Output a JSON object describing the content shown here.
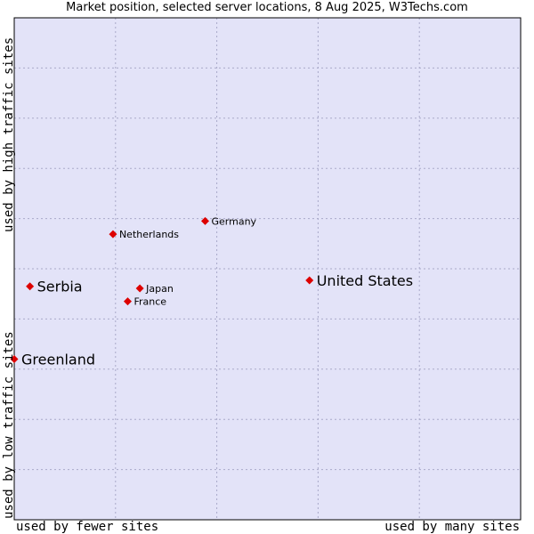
{
  "title": "Market position, selected server locations, 8 Aug 2025, W3Techs.com",
  "chart_data": {
    "type": "scatter",
    "title": "Market position, selected server locations, 8 Aug 2025, W3Techs.com",
    "x_axis": {
      "low_label": "used by fewer sites",
      "high_label": "used by many sites",
      "range": [
        0,
        100
      ]
    },
    "y_axis": {
      "low_label": "used by low traffic sites",
      "high_label": "used by high traffic sites",
      "range": [
        0,
        100
      ]
    },
    "grid": true,
    "points": [
      {
        "label": "United States",
        "x": 58.3,
        "y": 47.7,
        "emphasis": true
      },
      {
        "label": "Serbia",
        "x": 3.1,
        "y": 46.5,
        "emphasis": true
      },
      {
        "label": "Greenland",
        "x": 0.0,
        "y": 32.0,
        "emphasis": true
      },
      {
        "label": "Germany",
        "x": 37.7,
        "y": 59.5,
        "emphasis": false
      },
      {
        "label": "Netherlands",
        "x": 19.5,
        "y": 56.9,
        "emphasis": false
      },
      {
        "label": "Japan",
        "x": 24.8,
        "y": 46.1,
        "emphasis": false
      },
      {
        "label": "France",
        "x": 22.4,
        "y": 43.5,
        "emphasis": false
      }
    ]
  },
  "colors": {
    "plot_bg": "#e3e3f8",
    "grid": "#a9a9c9",
    "marker": "#dd0000",
    "frame": "#000000"
  }
}
